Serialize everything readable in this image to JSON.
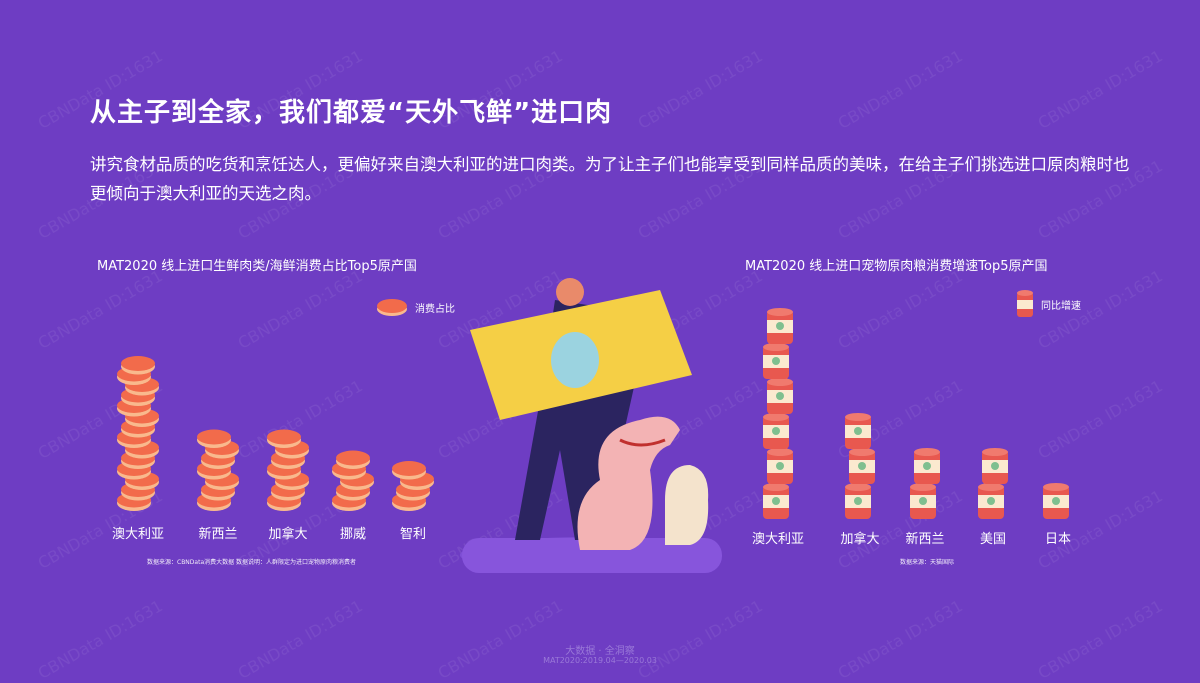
{
  "header": {
    "title": "从主子到全家，我们都爱“天外飞鲜”进口肉",
    "subtitle": "讲究食材品质的吃货和烹饪达人，更偏好来自澳大利亚的进口肉类。为了让主子们也能享受到同样品质的美味，在给主子们挑选进口原肉粮时也更倾向于澳大利亚的天选之肉。"
  },
  "watermark": "CBNData ID:1631",
  "chart_data": [
    {
      "type": "bar",
      "title": "MAT2020 线上进口生鲜肉类/海鲜消费占比Top5原产国",
      "categories": [
        "澳大利亚",
        "新西兰",
        "加拿大",
        "挪威",
        "智利"
      ],
      "series": [
        {
          "name": "消费占比",
          "values": [
            14,
            7,
            7,
            5,
            4
          ]
        }
      ],
      "icon": "meat-steak-icon",
      "color": "#f26b4b",
      "note": "数据来源：CBNData消费大数据    数据说明：人群限定为进口宠物原肉粮消费者"
    },
    {
      "type": "bar",
      "title": "MAT2020 线上进口宠物原肉粮消费增速Top5原产国",
      "categories": [
        "澳大利亚",
        "加拿大",
        "新西兰",
        "美国",
        "日本"
      ],
      "series": [
        {
          "name": "同比增速",
          "values": [
            6,
            3,
            2,
            2,
            1
          ]
        }
      ],
      "icon": "pet-food-can-icon",
      "color": "#e8584f",
      "note": "数据来源：天猫国际"
    }
  ],
  "footer": {
    "line1": "大数据 · 全洞察",
    "line2": "MAT2020:2019.04—2020.03"
  }
}
